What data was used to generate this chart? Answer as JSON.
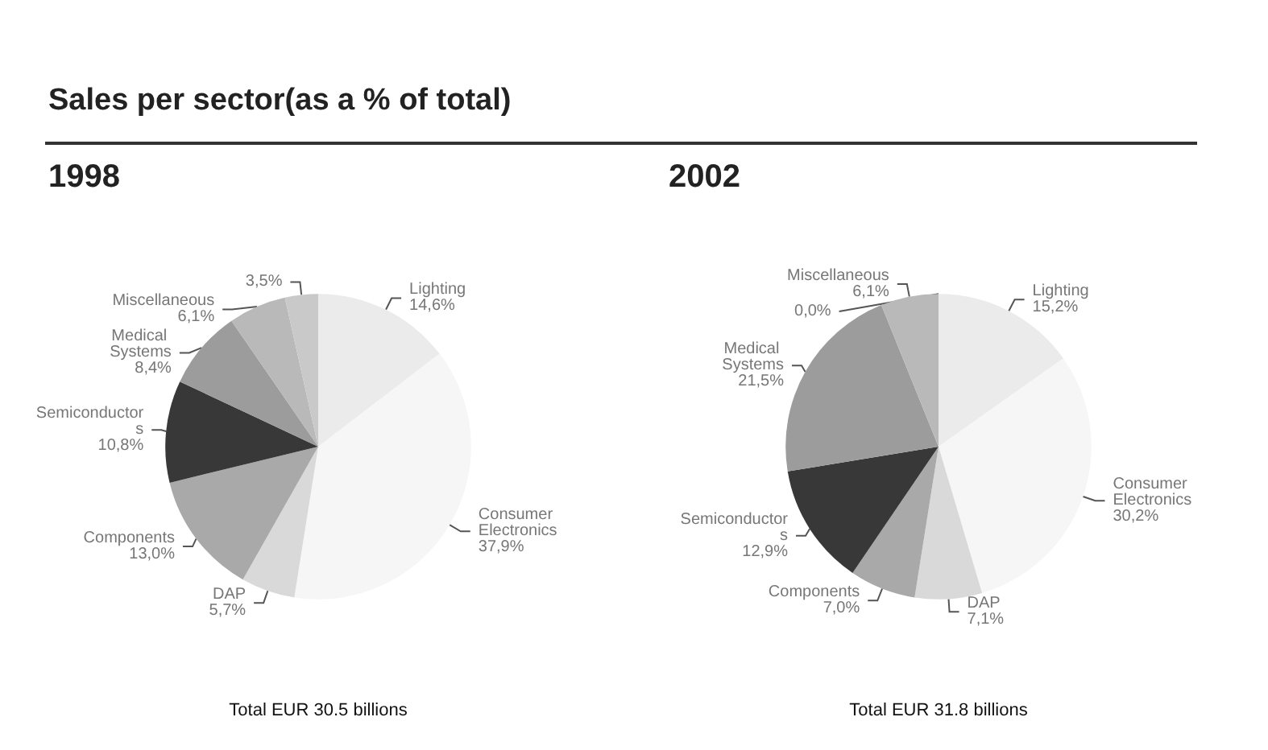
{
  "chart_data": [
    {
      "type": "pie",
      "title": "Sales per sector(as a % of total)",
      "subtitle": "1998",
      "categories": [
        "Lighting",
        "Consumer Electronics",
        "DAP",
        "Components",
        "Semiconductors",
        "Medical Systems",
        "Miscellaneous",
        null
      ],
      "values": [
        14.6,
        37.9,
        5.7,
        13.0,
        10.8,
        8.4,
        6.1,
        3.5
      ],
      "value_labels": [
        "14,6%",
        "37,9%",
        "5,7%",
        "13,0%",
        "10,8%",
        "8,4%",
        "6,1%",
        "3,5%"
      ],
      "colors": [
        "#ebebeb",
        "#f6f6f6",
        "#d9d9d9",
        "#a9a9a9",
        "#383838",
        "#9c9c9c",
        "#b9b9b9",
        "#c9c9c9"
      ],
      "legend": false,
      "annotations": [
        "Total EUR 30.5 billions"
      ]
    },
    {
      "type": "pie",
      "subtitle": "2002",
      "categories": [
        "Lighting",
        "Consumer Electronics",
        "DAP",
        "Components",
        "Semiconductors",
        "Medical Systems",
        "Miscellaneous",
        null
      ],
      "values": [
        15.2,
        30.2,
        7.1,
        7.0,
        12.9,
        21.5,
        6.1,
        0.0
      ],
      "value_labels": [
        "15,2%",
        "30,2%",
        "7,1%",
        "7,0%",
        "12,9%",
        "21,5%",
        "6,1%",
        "0,0%"
      ],
      "colors": [
        "#ebebeb",
        "#f6f6f6",
        "#d9d9d9",
        "#a9a9a9",
        "#383838",
        "#9c9c9c",
        "#b9b9b9",
        "#c9c9c9"
      ],
      "legend": false,
      "annotations": [
        "Total EUR 31.8 billions"
      ]
    }
  ]
}
